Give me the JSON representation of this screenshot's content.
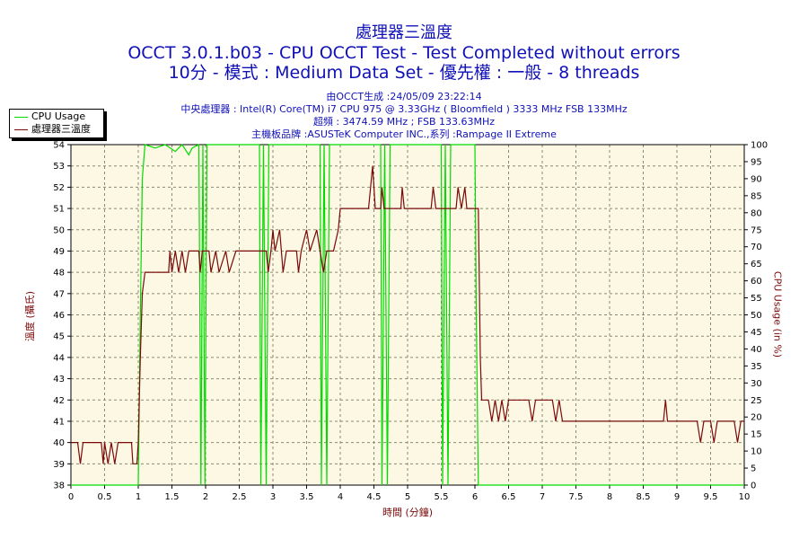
{
  "header": {
    "title": "處理器三溫度",
    "subtitle1": "OCCT 3.0.1.b03 - CPU OCCT Test - Test Completed without errors",
    "subtitle2": "10分 - 模式 : Medium Data Set - 優先權 : 一般 - 8 threads"
  },
  "info": {
    "generated": "由OCCT生成 :24/05/09 23:22:14",
    "cpu": "中央處理器 : Intel(R) Core(TM) i7 CPU 975 @ 3.33GHz ( Bloomfield ) 3333 MHz FSB 133MHz",
    "overclock": "超頻 : 3474.59 MHz ; FSB 133.63MHz",
    "motherboard": "主機板品牌 :ASUSTeK Computer INC.,系列 :Rampage II Extreme"
  },
  "colors": {
    "background": "#fdf8e3",
    "cpu_usage": "#00dc00",
    "temperature": "#7a0a0a",
    "grid": "#8a8a70"
  },
  "chart_data": {
    "type": "line",
    "title": "處理器三溫度",
    "xlabel": "時間 (分鐘)",
    "ylabel_left": "溫度 (攝氏)",
    "ylabel_right": "CPU Usage (in %)",
    "xlim": [
      0,
      10
    ],
    "ylim_left": [
      38,
      54
    ],
    "ylim_right": [
      0,
      100
    ],
    "x_ticks": [
      "0",
      "0.5",
      "1",
      "1.5",
      "2",
      "2.5",
      "3",
      "3.5",
      "4",
      "4.5",
      "5",
      "5.5",
      "6",
      "6.5",
      "7",
      "7.5",
      "8",
      "8.5",
      "9",
      "9.5",
      "10"
    ],
    "y_left_ticks": [
      "38",
      "39",
      "40",
      "41",
      "42",
      "43",
      "44",
      "45",
      "46",
      "47",
      "48",
      "49",
      "50",
      "51",
      "52",
      "53",
      "54"
    ],
    "y_right_ticks": [
      "0",
      "5",
      "10",
      "15",
      "20",
      "25",
      "30",
      "35",
      "40",
      "45",
      "50",
      "55",
      "60",
      "65",
      "70",
      "75",
      "80",
      "85",
      "90",
      "95",
      "100"
    ],
    "grid": true,
    "legend_position": "top-left outside",
    "series": [
      {
        "name": "CPU Usage",
        "axis": "right",
        "points": [
          [
            0,
            0
          ],
          [
            1.0,
            0
          ],
          [
            1.03,
            50
          ],
          [
            1.06,
            90
          ],
          [
            1.1,
            100
          ],
          [
            1.25,
            99
          ],
          [
            1.4,
            100
          ],
          [
            1.55,
            98
          ],
          [
            1.65,
            100
          ],
          [
            1.75,
            97
          ],
          [
            1.8,
            99
          ],
          [
            1.9,
            100
          ],
          [
            1.93,
            0
          ],
          [
            1.96,
            100
          ],
          [
            1.99,
            0
          ],
          [
            2.02,
            100
          ],
          [
            2.8,
            100
          ],
          [
            2.82,
            0
          ],
          [
            2.86,
            100
          ],
          [
            2.9,
            0
          ],
          [
            2.94,
            100
          ],
          [
            3.7,
            100
          ],
          [
            3.72,
            0
          ],
          [
            3.76,
            100
          ],
          [
            3.8,
            0
          ],
          [
            3.84,
            100
          ],
          [
            4.6,
            100
          ],
          [
            4.62,
            0
          ],
          [
            4.66,
            100
          ],
          [
            4.7,
            0
          ],
          [
            4.74,
            100
          ],
          [
            5.5,
            100
          ],
          [
            5.52,
            0
          ],
          [
            5.56,
            100
          ],
          [
            5.6,
            0
          ],
          [
            5.64,
            100
          ],
          [
            6.0,
            100
          ],
          [
            6.02,
            50
          ],
          [
            6.05,
            0
          ],
          [
            10,
            0
          ]
        ]
      },
      {
        "name": "處理器三溫度",
        "axis": "left",
        "points": [
          [
            0,
            40
          ],
          [
            0.1,
            40
          ],
          [
            0.14,
            39
          ],
          [
            0.18,
            40
          ],
          [
            0.45,
            40
          ],
          [
            0.48,
            39
          ],
          [
            0.5,
            40
          ],
          [
            0.55,
            39
          ],
          [
            0.6,
            40
          ],
          [
            0.65,
            39
          ],
          [
            0.7,
            40
          ],
          [
            0.9,
            40
          ],
          [
            0.92,
            39
          ],
          [
            0.98,
            39
          ],
          [
            1.0,
            40
          ],
          [
            1.03,
            44
          ],
          [
            1.06,
            47
          ],
          [
            1.1,
            48
          ],
          [
            1.45,
            48
          ],
          [
            1.47,
            49
          ],
          [
            1.5,
            48
          ],
          [
            1.55,
            49
          ],
          [
            1.6,
            48
          ],
          [
            1.65,
            49
          ],
          [
            1.7,
            48
          ],
          [
            1.75,
            49
          ],
          [
            1.9,
            49
          ],
          [
            1.92,
            48
          ],
          [
            1.95,
            49
          ],
          [
            2.05,
            49
          ],
          [
            2.08,
            48
          ],
          [
            2.15,
            49
          ],
          [
            2.2,
            48
          ],
          [
            2.3,
            49
          ],
          [
            2.35,
            48
          ],
          [
            2.45,
            49
          ],
          [
            2.9,
            49
          ],
          [
            2.93,
            48
          ],
          [
            2.97,
            49
          ],
          [
            3.0,
            50
          ],
          [
            3.03,
            49
          ],
          [
            3.1,
            50
          ],
          [
            3.15,
            48
          ],
          [
            3.2,
            49
          ],
          [
            3.35,
            49
          ],
          [
            3.38,
            48
          ],
          [
            3.42,
            49
          ],
          [
            3.5,
            50
          ],
          [
            3.55,
            49
          ],
          [
            3.65,
            50
          ],
          [
            3.7,
            49
          ],
          [
            3.75,
            48
          ],
          [
            3.8,
            49
          ],
          [
            3.9,
            49
          ],
          [
            3.97,
            50
          ],
          [
            4.0,
            51
          ],
          [
            4.42,
            51
          ],
          [
            4.45,
            52
          ],
          [
            4.48,
            53
          ],
          [
            4.5,
            52
          ],
          [
            4.52,
            51
          ],
          [
            4.6,
            51
          ],
          [
            4.62,
            52
          ],
          [
            4.65,
            51
          ],
          [
            4.9,
            51
          ],
          [
            4.92,
            52
          ],
          [
            4.95,
            51
          ],
          [
            5.35,
            51
          ],
          [
            5.38,
            52
          ],
          [
            5.42,
            51
          ],
          [
            5.72,
            51
          ],
          [
            5.75,
            52
          ],
          [
            5.8,
            51
          ],
          [
            5.85,
            52
          ],
          [
            5.88,
            51
          ],
          [
            6.05,
            51
          ],
          [
            6.08,
            44
          ],
          [
            6.1,
            42
          ],
          [
            6.2,
            42
          ],
          [
            6.25,
            41
          ],
          [
            6.3,
            42
          ],
          [
            6.35,
            41
          ],
          [
            6.4,
            42
          ],
          [
            6.45,
            41
          ],
          [
            6.5,
            42
          ],
          [
            6.8,
            42
          ],
          [
            6.85,
            41
          ],
          [
            6.9,
            42
          ],
          [
            7.15,
            42
          ],
          [
            7.2,
            41
          ],
          [
            7.25,
            42
          ],
          [
            7.3,
            41
          ],
          [
            7.35,
            41
          ],
          [
            8.8,
            41
          ],
          [
            8.83,
            42
          ],
          [
            8.86,
            41
          ],
          [
            9.3,
            41
          ],
          [
            9.35,
            40
          ],
          [
            9.4,
            41
          ],
          [
            9.5,
            41
          ],
          [
            9.55,
            40
          ],
          [
            9.6,
            41
          ],
          [
            9.85,
            41
          ],
          [
            9.9,
            40
          ],
          [
            9.95,
            41
          ],
          [
            10,
            41
          ]
        ]
      }
    ]
  }
}
